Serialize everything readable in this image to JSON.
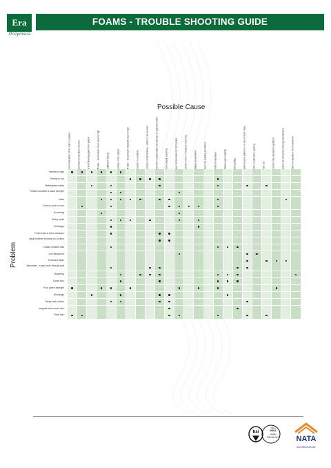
{
  "header": {
    "logo_text": "Era",
    "logo_sub": "Polymers",
    "title": "FOAMS - TROUBLE SHOOTING GUIDE"
  },
  "colors": {
    "brand_green": "#0b6b3a",
    "cell_light": "#e2efe1",
    "cell_dark": "#c9e0c6",
    "nata_orange": "#e8892b"
  },
  "table": {
    "cause_title": "Possible Cause",
    "problem_title": "Problem",
    "causes": [
      "Low temperature of iso and / or polyol",
      "Substrate temperature too low",
      "Lack of blowing agent from polyol",
      "Off ratio – Iso amount of iso used is high",
      "Insufficient Mixing",
      "Moisture in the polyol",
      "Off ratio – Iso amount of polyol used is high",
      "Moisture in container",
      "Moisture contamination – water in all vessels",
      "Check for contamination by silicone on polymerisation",
      "Check polyol reactivity",
      "Raise temperature of both polyol",
      "Look for errors in machine metering",
      "Catalyst deactivation",
      "Check the loading conditions",
      "Mould temperature",
      "Release agent quality",
      "Slow buildup",
      "Optimise pour pattern/s, or size of shot mass",
      "Till for mould when pouring",
      "Short cut",
      "Incorrect rate of polymer gelation",
      "Reduce oil component during manufacture",
      "Lower temperature of components"
    ],
    "problems": [
      "Density is high",
      "Density is low",
      "Widespread cavity",
      "Friable crumbles & lacks strength",
      "Voids",
      "Foam is slow to cure",
      "Scorching",
      "Sticky spots",
      "Shrinkage",
      "Foam rises & then collapses",
      "Large bubbles bursting on surface",
      "Coarse surface cells",
      "Air entrapment",
      "Excessive flash",
      "Blowholes - small voids through part",
      "Blistering",
      "Loose skin",
      "Poor green strength",
      "Shrinkage",
      "Tacky part surface",
      "Irregular cells under skin",
      "Thick skin"
    ],
    "marks": [
      [
        0,
        1,
        2,
        3,
        4,
        5
      ],
      [
        6,
        7,
        8,
        9,
        15
      ],
      [
        2,
        4,
        9,
        15,
        18,
        20
      ],
      [
        4,
        5,
        11
      ],
      [
        3,
        4,
        5,
        6,
        7,
        9,
        10,
        15,
        22
      ],
      [
        1,
        4,
        10,
        11,
        12,
        13,
        15
      ],
      [
        3,
        11
      ],
      [
        4,
        5,
        6,
        8,
        11,
        13
      ],
      [
        4,
        13
      ],
      [
        4,
        9,
        10
      ],
      [
        9,
        10
      ],
      [
        4,
        15,
        16,
        17
      ],
      [
        11,
        18,
        19
      ],
      [
        18,
        20,
        21,
        22
      ],
      [
        4,
        8,
        9,
        17,
        18
      ],
      [
        5,
        7,
        8,
        9,
        15,
        16,
        17,
        23
      ],
      [
        5,
        9,
        15,
        16,
        17
      ],
      [
        0,
        3,
        4,
        6,
        11,
        13,
        15,
        21
      ],
      [
        2,
        5,
        9,
        10,
        16
      ],
      [
        4,
        5,
        9,
        10,
        18
      ],
      [
        10,
        17
      ],
      [
        0,
        1,
        10,
        11,
        15,
        18,
        20
      ]
    ]
  },
  "footer": {
    "cert_line1": "ISO",
    "cert_line2": "9001",
    "cert_line3": "Quality",
    "cert_line4": "Management",
    "nata": "NATA",
    "nata_sub": "ACCREDITATION"
  }
}
